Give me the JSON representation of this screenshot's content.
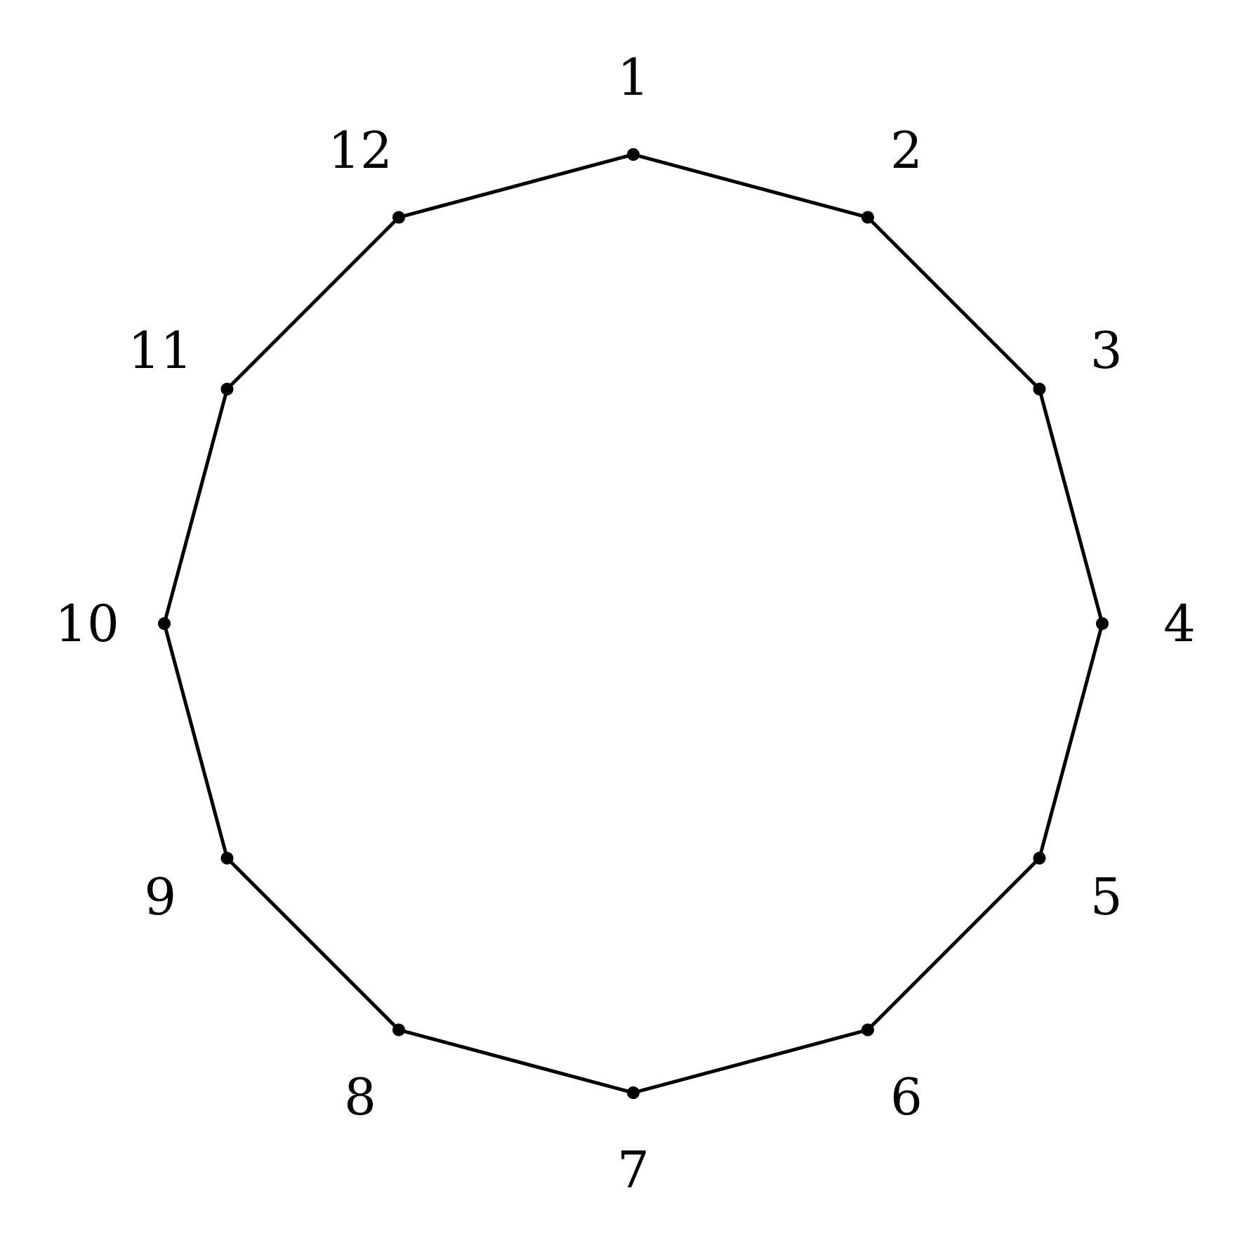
{
  "diagram": {
    "type": "cycle-graph",
    "vertex_count": 12,
    "vertices": [
      {
        "label": "1"
      },
      {
        "label": "2"
      },
      {
        "label": "3"
      },
      {
        "label": "4"
      },
      {
        "label": "5"
      },
      {
        "label": "6"
      },
      {
        "label": "7"
      },
      {
        "label": "8"
      },
      {
        "label": "9"
      },
      {
        "label": "10"
      },
      {
        "label": "11"
      },
      {
        "label": "12"
      }
    ],
    "edges": [
      [
        "1",
        "2"
      ],
      [
        "2",
        "3"
      ],
      [
        "3",
        "4"
      ],
      [
        "4",
        "5"
      ],
      [
        "5",
        "6"
      ],
      [
        "6",
        "7"
      ],
      [
        "7",
        "8"
      ],
      [
        "8",
        "9"
      ],
      [
        "9",
        "10"
      ],
      [
        "10",
        "11"
      ],
      [
        "11",
        "12"
      ],
      [
        "12",
        "1"
      ]
    ],
    "colors": {
      "edge": "#000000",
      "vertex": "#000000",
      "label": "#000000",
      "background": "#ffffff"
    }
  }
}
